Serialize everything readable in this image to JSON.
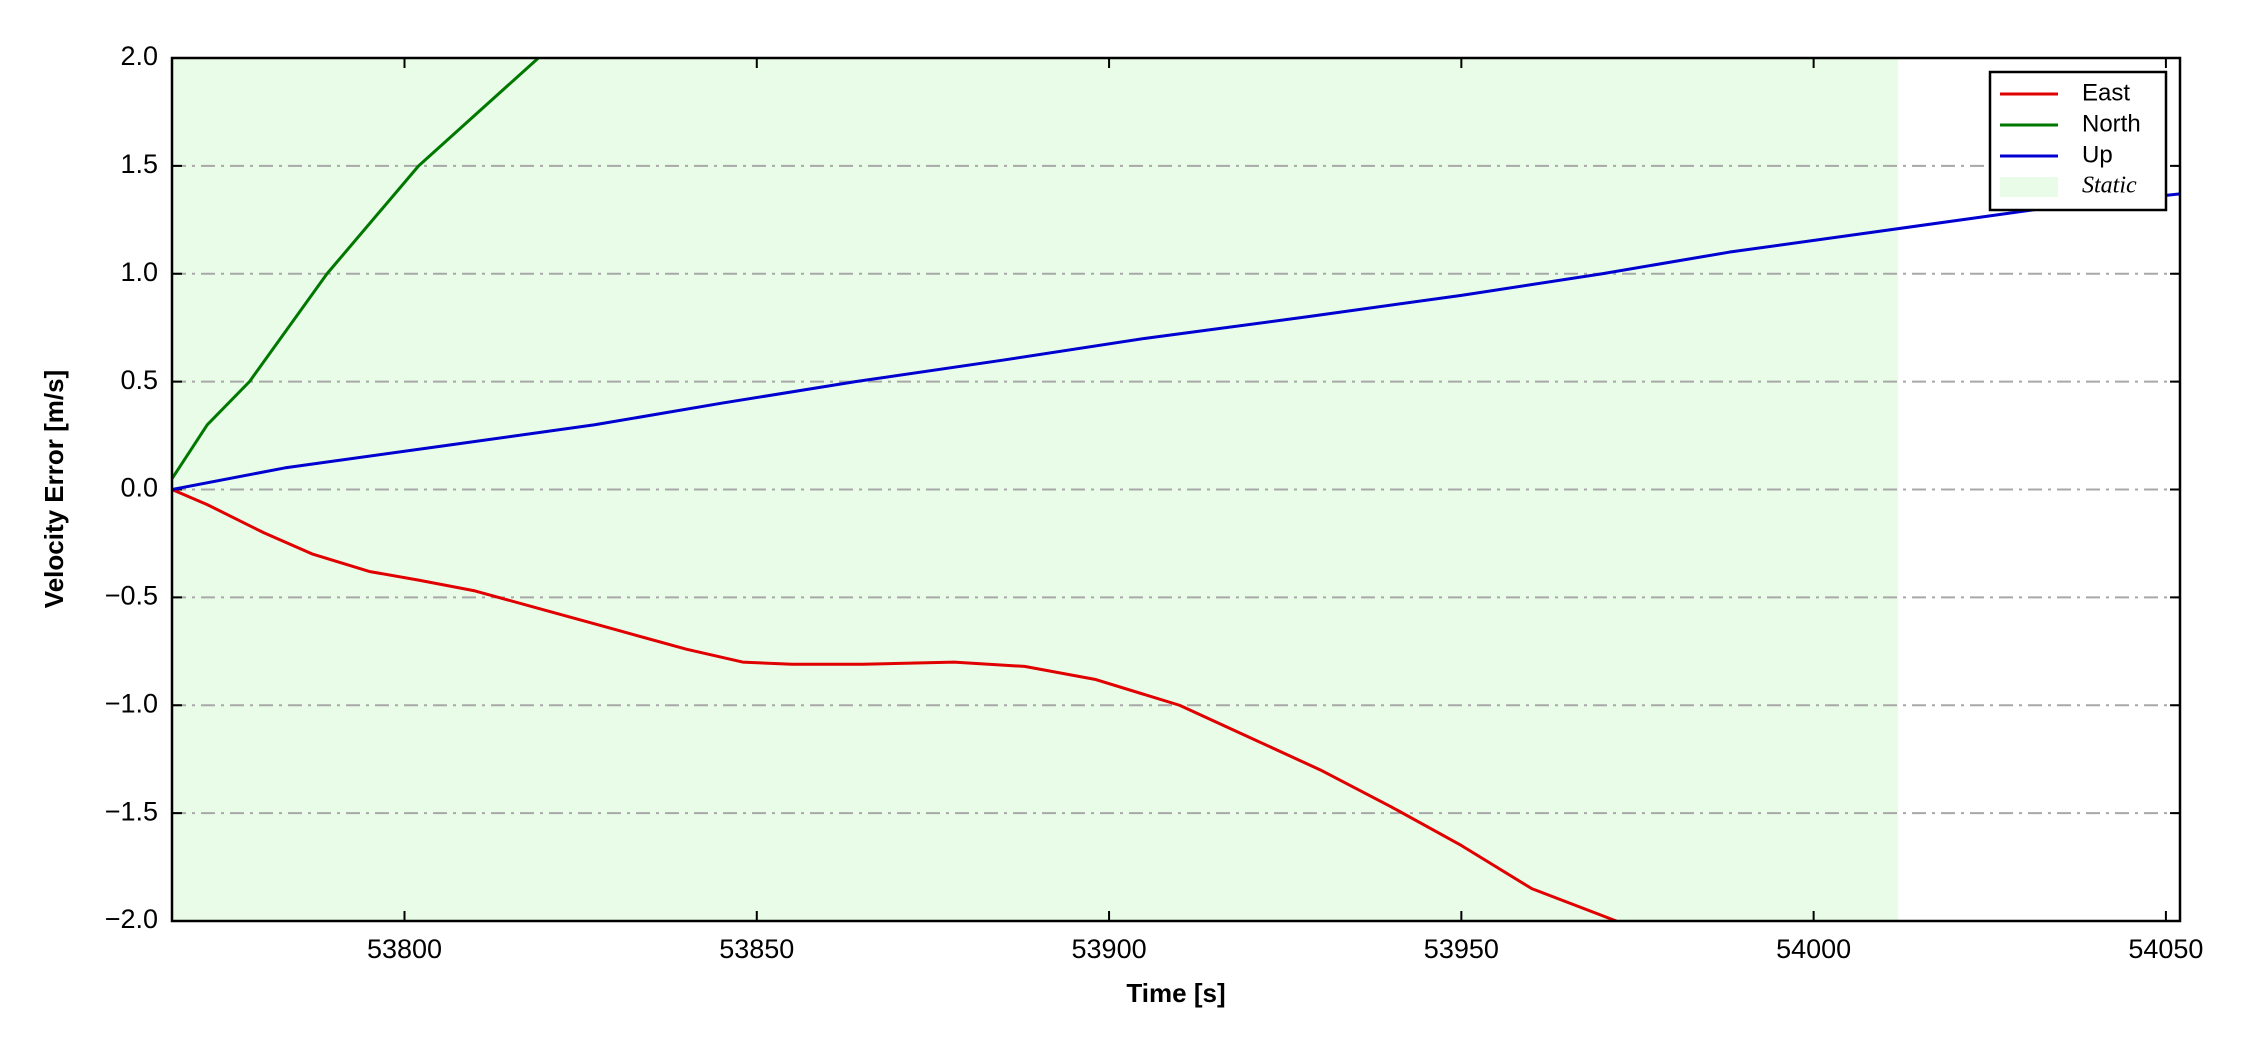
{
  "chart_data": {
    "type": "line",
    "x_label": "Time [s]",
    "y_label": "Velocity Error [m/s]",
    "xlim": [
      53767,
      54052
    ],
    "xticks": [
      53800,
      53850,
      53900,
      53950,
      54000,
      54050
    ],
    "ylim": [
      -2,
      2
    ],
    "yticks": [
      {
        "value": -2,
        "label": "−2.0"
      },
      {
        "value": -1.5,
        "label": "−1.5"
      },
      {
        "value": -1,
        "label": "−1.0"
      },
      {
        "value": -0.5,
        "label": "−0.5"
      },
      {
        "value": 0,
        "label": "0.0"
      },
      {
        "value": 0.5,
        "label": "0.5"
      },
      {
        "value": 1,
        "label": "1.0"
      },
      {
        "value": 1.5,
        "label": "1.5"
      },
      {
        "value": 2,
        "label": "2.0"
      }
    ],
    "grid": true,
    "legend": "upper right",
    "shaded_region": {
      "name": "Static",
      "x": [
        53767,
        54012
      ],
      "color": "#e8fce8"
    },
    "series": [
      {
        "name": "East",
        "color": "#e00000",
        "x": [
          53767,
          53772,
          53780,
          53787,
          53795,
          53802,
          53810,
          53820,
          53830,
          53840,
          53848,
          53855,
          53865,
          53878,
          53888,
          53898,
          53910,
          53920,
          53930,
          53940,
          53950,
          53960,
          53972
        ],
        "values": [
          0,
          -0.07,
          -0.2,
          -0.3,
          -0.38,
          -0.42,
          -0.47,
          -0.56,
          -0.65,
          -0.74,
          -0.8,
          -0.81,
          -0.81,
          -0.8,
          -0.82,
          -0.88,
          -1.0,
          -1.15,
          -1.3,
          -1.47,
          -1.65,
          -1.85,
          -2.0
        ]
      },
      {
        "name": "North",
        "color": "#007800",
        "x": [
          53767,
          53772,
          53778,
          53789,
          53802,
          53819
        ],
        "values": [
          0.05,
          0.3,
          0.5,
          1.0,
          1.5,
          2.0
        ]
      },
      {
        "name": "Up",
        "color": "#0000d0",
        "x": [
          53767,
          53783,
          53805,
          53827,
          53845,
          53864,
          53885,
          53905,
          53928,
          53950,
          53970,
          53988,
          54010,
          54032,
          54052
        ],
        "values": [
          0,
          0.1,
          0.2,
          0.3,
          0.4,
          0.5,
          0.6,
          0.7,
          0.8,
          0.9,
          1.0,
          1.1,
          1.2,
          1.3,
          1.37
        ]
      }
    ]
  }
}
